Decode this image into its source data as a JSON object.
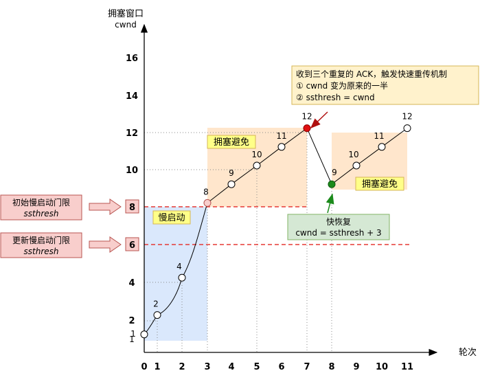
{
  "y_axis": {
    "title_line1": "拥塞窗口",
    "title_line2": "cwnd",
    "ticks": [
      "16",
      "14",
      "12",
      "10",
      "4",
      "2",
      "1"
    ]
  },
  "x_axis": {
    "label": "轮次",
    "ticks": [
      "0",
      "1",
      "2",
      "3",
      "4",
      "5",
      "6",
      "7",
      "8",
      "9",
      "10",
      "11"
    ]
  },
  "thresholds": [
    {
      "value": "8",
      "label_line1": "初始慢启动门限",
      "label_line2": "ssthresh"
    },
    {
      "value": "6",
      "label_line1": "更新慢启动门限",
      "label_line2": "ssthresh"
    }
  ],
  "regions": {
    "slow_start": "慢启动",
    "avoid1": "拥塞避免",
    "avoid2": "拥塞避免"
  },
  "callouts": {
    "loss_line1": "收到三个重复的 ACK，触发快速重传机制",
    "loss_line2": "① cwnd 变为原来的一半",
    "loss_line3": "② ssthresh = cwnd",
    "recovery_line1": "快恢复",
    "recovery_line2": "cwnd = ssthresh + 3"
  },
  "point_labels": [
    "1",
    "2",
    "4",
    "8",
    "9",
    "10",
    "11",
    "12",
    "9",
    "10",
    "11",
    "12"
  ],
  "colors": {
    "slow_start_fill": "#dae8fc",
    "avoid_fill": "#ffe6cc",
    "threshold": "#e53935",
    "loss_point": "#e01010",
    "recovery_point": "#1b8a1b",
    "callout_fill": "#fff2cc",
    "recovery_fill": "#d5e8d4",
    "label_fill": "#f8cecc"
  },
  "chart_data": {
    "type": "line",
    "series": [
      {
        "x": [
          0,
          1,
          2,
          3,
          4,
          5,
          6,
          7
        ],
        "y": [
          1,
          2,
          4,
          8,
          9,
          10,
          11,
          12
        ]
      },
      {
        "x": [
          7,
          8
        ],
        "y": [
          12,
          9
        ]
      },
      {
        "x": [
          8,
          9,
          10,
          11
        ],
        "y": [
          9,
          10,
          11,
          12
        ]
      }
    ],
    "ssthresh_initial": 8,
    "ssthresh_updated": 6,
    "xlim": [
      0,
      11
    ],
    "ylim": [
      0,
      17
    ]
  }
}
